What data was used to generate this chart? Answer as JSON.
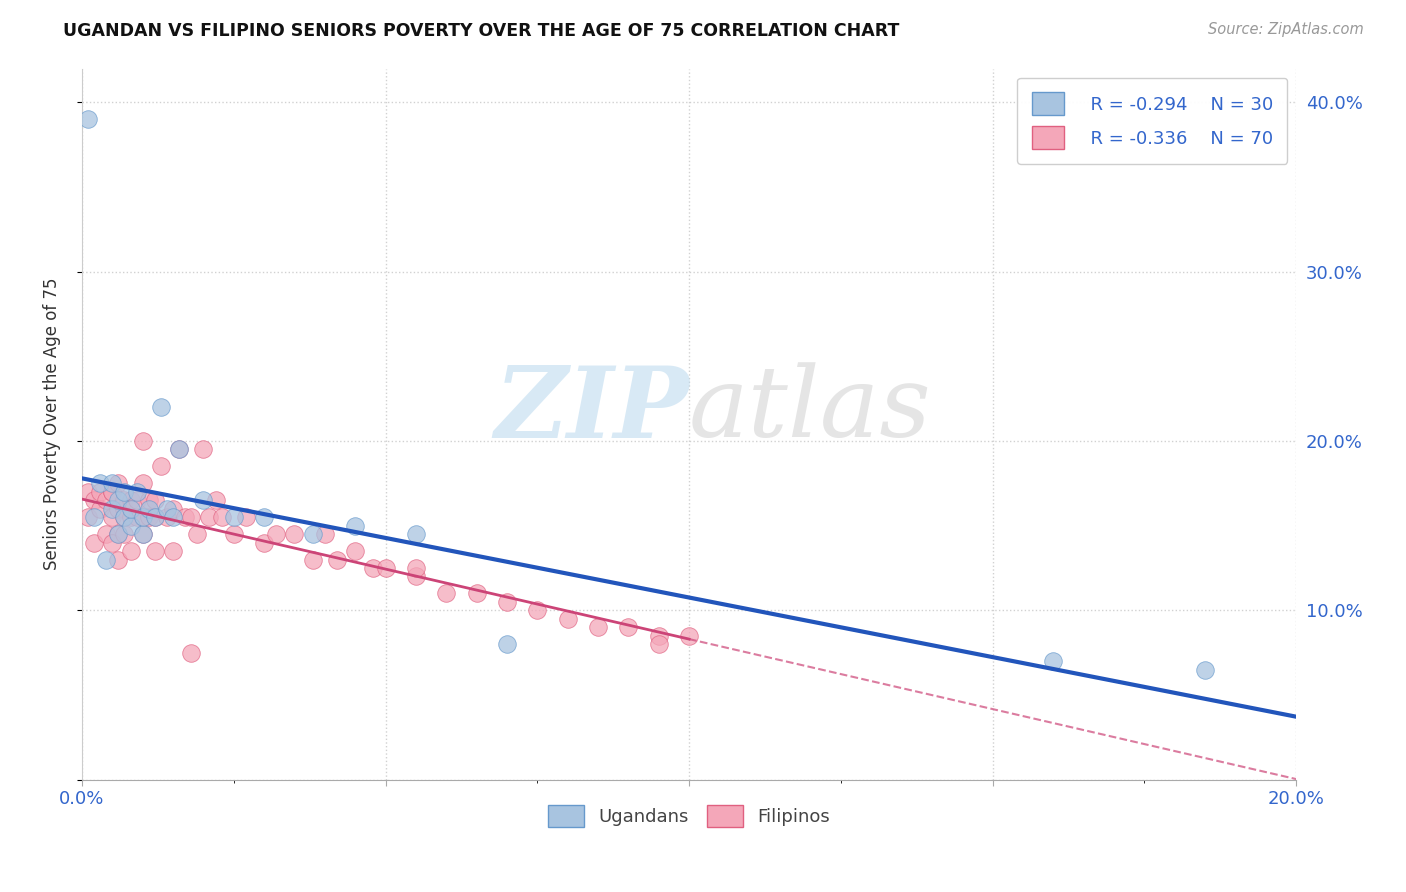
{
  "title": "UGANDAN VS FILIPINO SENIORS POVERTY OVER THE AGE OF 75 CORRELATION CHART",
  "source": "Source: ZipAtlas.com",
  "ylabel": "Seniors Poverty Over the Age of 75",
  "xlim": [
    0.0,
    0.2
  ],
  "ylim": [
    0.0,
    0.42
  ],
  "ugandan_color": "#a8c4e0",
  "filipino_color": "#f4a7b9",
  "ugandan_edge": "#6699cc",
  "filipino_edge": "#e06080",
  "trend_ugandan_color": "#2255bb",
  "trend_filipino_color": "#cc4477",
  "legend_R_ugandan": "R = -0.294",
  "legend_N_ugandan": "N = 30",
  "legend_R_filipino": "R = -0.336",
  "legend_N_filipino": "N = 70",
  "watermark_zip": "ZIP",
  "watermark_atlas": "atlas",
  "ugandan_x": [
    0.001,
    0.002,
    0.003,
    0.004,
    0.005,
    0.005,
    0.006,
    0.006,
    0.007,
    0.007,
    0.008,
    0.008,
    0.009,
    0.01,
    0.01,
    0.011,
    0.012,
    0.013,
    0.014,
    0.015,
    0.016,
    0.02,
    0.025,
    0.03,
    0.038,
    0.045,
    0.055,
    0.07,
    0.16,
    0.185
  ],
  "ugandan_y": [
    0.39,
    0.155,
    0.175,
    0.13,
    0.16,
    0.175,
    0.145,
    0.165,
    0.155,
    0.17,
    0.15,
    0.16,
    0.17,
    0.145,
    0.155,
    0.16,
    0.155,
    0.22,
    0.16,
    0.155,
    0.195,
    0.165,
    0.155,
    0.155,
    0.145,
    0.15,
    0.145,
    0.08,
    0.07,
    0.065
  ],
  "filipino_x": [
    0.001,
    0.001,
    0.002,
    0.002,
    0.003,
    0.003,
    0.004,
    0.004,
    0.005,
    0.005,
    0.005,
    0.006,
    0.006,
    0.006,
    0.007,
    0.007,
    0.007,
    0.008,
    0.008,
    0.009,
    0.009,
    0.01,
    0.01,
    0.01,
    0.011,
    0.011,
    0.012,
    0.012,
    0.013,
    0.014,
    0.015,
    0.016,
    0.017,
    0.018,
    0.019,
    0.02,
    0.021,
    0.022,
    0.023,
    0.025,
    0.027,
    0.03,
    0.032,
    0.035,
    0.038,
    0.04,
    0.042,
    0.045,
    0.048,
    0.05,
    0.055,
    0.06,
    0.065,
    0.07,
    0.075,
    0.08,
    0.085,
    0.09,
    0.095,
    0.1,
    0.005,
    0.006,
    0.007,
    0.008,
    0.01,
    0.012,
    0.015,
    0.018,
    0.055,
    0.095
  ],
  "filipino_y": [
    0.155,
    0.17,
    0.14,
    0.165,
    0.17,
    0.16,
    0.145,
    0.165,
    0.17,
    0.155,
    0.17,
    0.145,
    0.16,
    0.175,
    0.16,
    0.155,
    0.165,
    0.155,
    0.165,
    0.155,
    0.165,
    0.175,
    0.155,
    0.2,
    0.155,
    0.165,
    0.155,
    0.165,
    0.185,
    0.155,
    0.16,
    0.195,
    0.155,
    0.155,
    0.145,
    0.195,
    0.155,
    0.165,
    0.155,
    0.145,
    0.155,
    0.14,
    0.145,
    0.145,
    0.13,
    0.145,
    0.13,
    0.135,
    0.125,
    0.125,
    0.12,
    0.11,
    0.11,
    0.105,
    0.1,
    0.095,
    0.09,
    0.09,
    0.085,
    0.085,
    0.14,
    0.13,
    0.145,
    0.135,
    0.145,
    0.135,
    0.135,
    0.075,
    0.125,
    0.08
  ]
}
